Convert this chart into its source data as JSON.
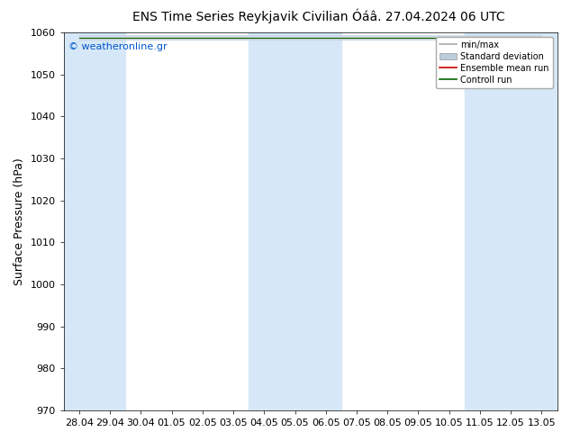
{
  "title_left": "ENS Time Series Reykjavik Civilian",
  "title_right": "Óáâ. 27.04.2024 06 UTC",
  "ylabel": "Surface Pressure (hPa)",
  "ylim": [
    970,
    1060
  ],
  "yticks": [
    970,
    980,
    990,
    1000,
    1010,
    1020,
    1030,
    1040,
    1050,
    1060
  ],
  "x_tick_labels": [
    "28.04",
    "29.04",
    "30.04",
    "01.05",
    "02.05",
    "03.05",
    "04.05",
    "05.05",
    "06.05",
    "07.05",
    "08.05",
    "09.05",
    "10.05",
    "11.05",
    "12.05",
    "13.05"
  ],
  "watermark": "© weatheronline.gr",
  "bg_color": "#FFFFFF",
  "band_color": "#D6E8F7",
  "band_indices": [
    0,
    1,
    6,
    7,
    8,
    13,
    14,
    15
  ],
  "legend_items": [
    "min/max",
    "Standard deviation",
    "Ensemble mean run",
    "Controll run"
  ],
  "mean_value": 1058.8,
  "title_fontsize": 10,
  "tick_fontsize": 8,
  "ylabel_fontsize": 9
}
